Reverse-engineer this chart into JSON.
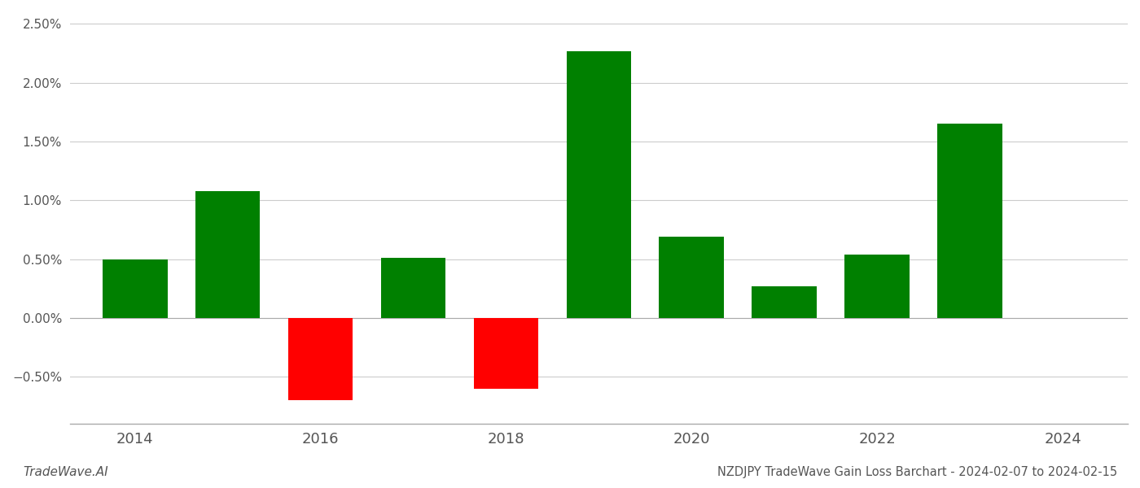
{
  "years": [
    2014,
    2015,
    2016,
    2017,
    2018,
    2019,
    2020,
    2021,
    2022,
    2023
  ],
  "values": [
    0.005,
    0.0108,
    -0.007,
    0.0051,
    -0.006,
    0.0227,
    0.0069,
    0.0027,
    0.0054,
    0.0165
  ],
  "colors": [
    "#008000",
    "#008000",
    "#ff0000",
    "#008000",
    "#ff0000",
    "#008000",
    "#008000",
    "#008000",
    "#008000",
    "#008000"
  ],
  "title": "NZDJPY TradeWave Gain Loss Barchart - 2024-02-07 to 2024-02-15",
  "footer_left": "TradeWave.AI",
  "ylim": [
    -0.009,
    0.026
  ],
  "ytick_values": [
    -0.005,
    0.0,
    0.005,
    0.01,
    0.015,
    0.02,
    0.025
  ],
  "xtick_labels": [
    2014,
    2016,
    2018,
    2020,
    2022,
    2024
  ],
  "background_color": "#ffffff",
  "grid_color": "#cccccc",
  "bar_width": 0.7
}
